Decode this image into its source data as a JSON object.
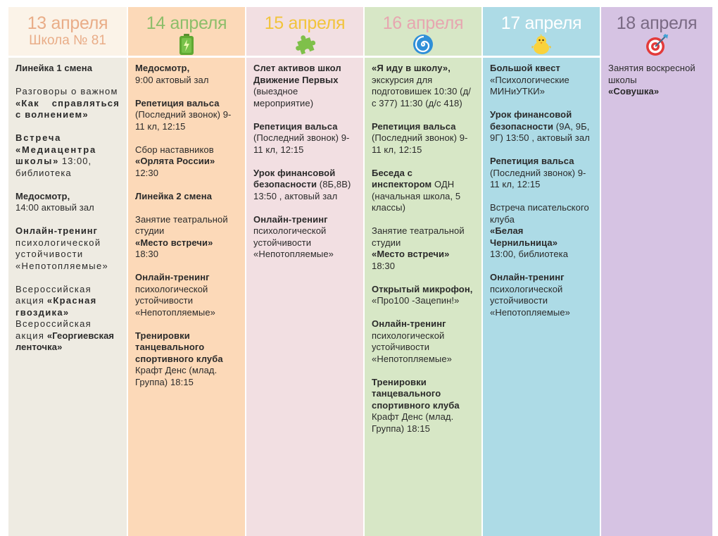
{
  "days": [
    {
      "date": "13 апреля",
      "subtitle": "Школа № 81",
      "entries": [
        {
          "title": "Линейка 1 смена",
          "text": ""
        },
        {
          "pre": "Разговоры о важном",
          "title": "«Как справляться с волнением»",
          "text": ""
        },
        {
          "title": "Встреча «Медиацентра школы»",
          "text": "13:00, библиотека"
        },
        {
          "title": "Медосмотр,",
          "text": "14:00 актовый зал"
        },
        {
          "title": "Онлайн-тренинг",
          "text": "психологической устойчивости «Непотопляемые»"
        },
        {
          "pre": "Всероссийская акция",
          "title": "«Красная гвоздика»",
          "text": ""
        },
        {
          "pre": "Всероссийская акция",
          "title": "«Георгиевская ленточка»",
          "text": ""
        }
      ]
    },
    {
      "date": "14 апреля",
      "icon": "battery-icon",
      "entries": [
        {
          "title": "Медосмотр,",
          "text": "9:00 актовый зал"
        },
        {
          "title": "Репетиция вальса",
          "text": "(Последний звонок) 9-11 кл, 12:15"
        },
        {
          "pre": "Сбор наставников",
          "title": "«Орлята России»",
          "text": "12:30"
        },
        {
          "title": "Линейка 2 смена",
          "text": ""
        },
        {
          "pre": "Занятие театральной студии",
          "title": "«Место встречи»",
          "text": "18:30"
        },
        {
          "title": "Онлайн-тренинг",
          "text": "психологической устойчивости «Непотопляемые»"
        },
        {
          "title": "Тренировки танцевального спортивного клуба",
          "text": "Крафт Денс (млад. Группа) 18:15"
        }
      ]
    },
    {
      "date": "15 апреля",
      "icon": "puzzle-icon",
      "entries": [
        {
          "title": "Слет активов школ Движение Первых",
          "text": "(выездное мероприятие)"
        },
        {
          "title": "Репетиция вальса",
          "text": "(Последний звонок) 9-11 кл, 12:15"
        },
        {
          "title": "Урок финансовой безопасности",
          "text": "(8Б,8В) 13:50 , актовый зал"
        },
        {
          "title": "Онлайн-тренинг",
          "text": "психологической устойчивости «Непотопляемые»"
        }
      ]
    },
    {
      "date": "16 апреля",
      "icon": "swirl-icon",
      "entries": [
        {
          "title": "«Я иду в школу»,",
          "text": "экскурсия для подготовишек 10:30 (д/с 377) 11:30 (д/с 418)"
        },
        {
          "title": "Репетиция вальса",
          "text": "(Последний звонок) 9-11 кл, 12:15"
        },
        {
          "title": "Беседа с инспектором",
          "text": "ОДН (начальная школа, 5 классы)"
        },
        {
          "pre": "Занятие театральной студии",
          "title": "«Место встречи»",
          "text": "18:30"
        },
        {
          "title": "Открытый микрофон,",
          "text": "«Про100 -Зацепин!»"
        },
        {
          "title": "Онлайн-тренинг",
          "text": "психологической устойчивости «Непотопляемые»"
        },
        {
          "title": "Тренировки танцевального спортивного клуба",
          "text": "Крафт Денс (млад. Группа) 18:15"
        }
      ]
    },
    {
      "date": "17 апреля",
      "icon": "chick-icon",
      "entries": [
        {
          "title": "Большой квест",
          "text": "«Психологические МИНиУТКИ»"
        },
        {
          "title": "Урок финансовой безопасности",
          "text": "(9А, 9Б, 9Г) 13:50 , актовый зал"
        },
        {
          "title": "Репетиция вальса",
          "text": "(Последний звонок) 9-11 кл, 12:15"
        },
        {
          "pre": "Встреча писательского клуба",
          "title": "«Белая Чернильница»",
          "text": "13:00, библиотека"
        },
        {
          "title": "Онлайн-тренинг",
          "text": "психологической устойчивости «Непотопляемые»"
        }
      ]
    },
    {
      "date": "18 апреля",
      "icon": "target-icon",
      "entries": [
        {
          "pre": "Занятия воскресной школы",
          "title": "«Совушка»",
          "text": ""
        }
      ]
    }
  ]
}
